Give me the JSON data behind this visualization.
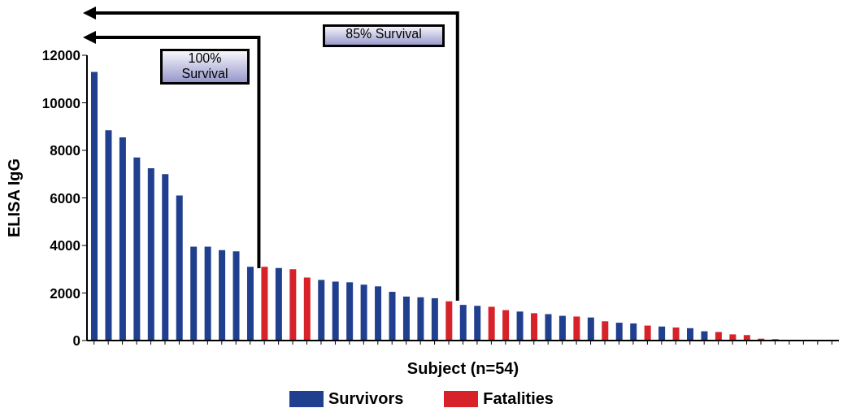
{
  "chart_data": {
    "type": "bar",
    "stacked": true,
    "xlabel": "Subject (n=54)",
    "ylabel": "ELISA IgG",
    "categories": [
      null,
      null,
      null,
      null,
      null,
      null,
      null,
      null,
      null,
      null,
      null,
      null,
      null,
      null,
      null,
      null,
      null,
      null,
      null,
      null,
      null,
      null,
      null,
      null,
      null,
      null,
      null,
      null,
      null,
      null,
      null,
      null,
      null,
      null,
      null,
      null,
      null,
      null,
      null,
      null,
      null,
      null,
      null,
      null,
      null,
      null,
      null,
      null,
      null,
      null,
      null,
      null,
      null
    ],
    "series": [
      {
        "name": "Survivors",
        "color": "#213f8f",
        "values": [
          11300,
          8850,
          8550,
          7700,
          7250,
          7000,
          6100,
          3950,
          3950,
          3800,
          3750,
          3100,
          null,
          3050,
          null,
          null,
          2550,
          2480,
          2450,
          2350,
          2280,
          2050,
          1850,
          1820,
          1780,
          null,
          1500,
          1460,
          null,
          null,
          1220,
          null,
          1110,
          1040,
          null,
          970,
          null,
          750,
          720,
          null,
          590,
          null,
          520,
          390,
          null,
          null,
          null,
          null,
          null,
          null,
          null,
          null,
          null
        ]
      },
      {
        "name": "Fatalities",
        "color": "#d7222a",
        "values": [
          null,
          null,
          null,
          null,
          null,
          null,
          null,
          null,
          null,
          null,
          null,
          null,
          3100,
          null,
          3000,
          2650,
          null,
          null,
          null,
          null,
          null,
          null,
          null,
          null,
          null,
          1650,
          null,
          null,
          1420,
          1280,
          null,
          1150,
          null,
          null,
          1010,
          null,
          810,
          null,
          null,
          630,
          null,
          550,
          null,
          null,
          360,
          260,
          230,
          80,
          60,
          null,
          null,
          null,
          null
        ]
      }
    ],
    "ylim": [
      0,
      12000
    ],
    "yticks": [
      0,
      2000,
      4000,
      6000,
      8000,
      10000,
      12000
    ],
    "legend": "bottom",
    "annotations": [
      "100% Survival",
      "85% Survival"
    ]
  }
}
